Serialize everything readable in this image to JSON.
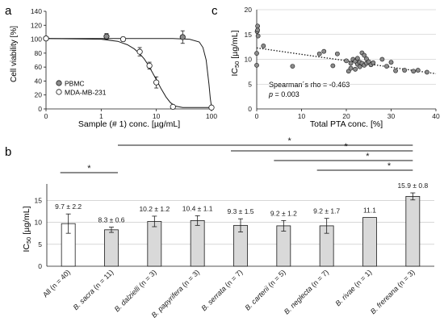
{
  "panels": {
    "a": {
      "letter": "a"
    },
    "b": {
      "letter": "b"
    },
    "c": {
      "letter": "c"
    }
  },
  "colors": {
    "ink": "#1a1a1a",
    "bar_highlight": "#ffffff",
    "bar_default": "#d9d9d9",
    "marker_grey": "#8c8c8c",
    "marker_white": "#ffffff",
    "grid": "#bfbfbf"
  },
  "chart_data": [
    {
      "panel": "a",
      "type": "line",
      "xscale": "log",
      "xlim": [
        0,
        100
      ],
      "x_ticks": [
        0,
        1,
        10,
        100
      ],
      "ylim": [
        0,
        140
      ],
      "y_ticks": [
        0,
        20,
        40,
        60,
        80,
        100,
        120,
        140
      ],
      "ylim_label_fmt": "0",
      "xlabel": "Sample (# 1) conc. [µg/mL]",
      "ylabel": "Cell viability [%]",
      "legend": {
        "placement": "bottom-left"
      },
      "series": [
        {
          "name": "PBMC",
          "marker": "filled-grey",
          "x": [
            0,
            1.25,
            30
          ],
          "y": [
            101,
            104,
            103
          ],
          "err": [
            2,
            4,
            9
          ],
          "curve_x": [
            0,
            1,
            5,
            20,
            40,
            60,
            70,
            80,
            90,
            95,
            100
          ],
          "curve_y": [
            101,
            101,
            101,
            101,
            100,
            96,
            88,
            70,
            35,
            15,
            3
          ]
        },
        {
          "name": "MDA-MB-231",
          "marker": "open",
          "x": [
            0,
            2.5,
            5,
            7.5,
            10,
            20,
            100
          ],
          "y": [
            101,
            100,
            82,
            62,
            38,
            3,
            2
          ],
          "err": [
            2,
            3,
            6,
            5,
            8,
            1,
            1
          ],
          "curve_x": [
            0,
            1,
            2,
            3,
            4,
            5,
            6,
            7,
            8,
            10,
            12,
            15,
            18,
            22,
            30,
            50,
            100
          ],
          "curve_y": [
            101,
            100,
            97,
            92,
            86,
            79,
            72,
            64,
            56,
            42,
            30,
            17,
            9,
            4,
            2,
            2,
            2
          ]
        }
      ]
    },
    {
      "panel": "b",
      "type": "bar",
      "ylabel": "IC50 [µg/mL]",
      "ylim": [
        0,
        18
      ],
      "y_ticks": [
        0,
        5,
        10,
        15
      ],
      "categories": [
        {
          "label": "All (n = 40)",
          "italic_part": ""
        },
        {
          "label": "B. sacra (n = 11)",
          "italic_part": "B. sacra"
        },
        {
          "label": "B. dalzielli (n = 3)",
          "italic_part": "B. dalzielli"
        },
        {
          "label": "B. papyrifera (n = 3)",
          "italic_part": "B. papyrifera"
        },
        {
          "label": "B. serrata (n = 7)",
          "italic_part": "B. serrata"
        },
        {
          "label": "B. carterii (n = 5)",
          "italic_part": "B. carterii"
        },
        {
          "label": "B. neglecta (n = 7)",
          "italic_part": "B. neglecta"
        },
        {
          "label": "B. rivae (n = 1)",
          "italic_part": "B. rivae"
        },
        {
          "label": "B. frereana (n = 3)",
          "italic_part": "B. frereana"
        }
      ],
      "values": [
        9.7,
        8.3,
        10.2,
        10.4,
        9.3,
        9.2,
        9.2,
        11.1,
        15.9
      ],
      "errors": [
        2.2,
        0.6,
        1.2,
        1.1,
        1.5,
        1.2,
        1.7,
        0,
        0.8
      ],
      "value_labels": [
        "9.7 ± 2.2",
        "8.3 ± 0.6",
        "10.2 ± 1.2",
        "10.4 ± 1.1",
        "9.3 ± 1.5",
        "9.2 ± 1.2",
        "9.2 ± 1.7",
        "11.1",
        "15.9 ± 0.8"
      ],
      "significance": [
        {
          "from": 0,
          "to": 1,
          "label": "*"
        },
        {
          "from": 1,
          "to": 8,
          "label": "*"
        },
        {
          "from": 4,
          "to": 8,
          "label": "*"
        },
        {
          "from": 5,
          "to": 8,
          "label": "*"
        },
        {
          "from": 6,
          "to": 8,
          "label": "*"
        }
      ]
    },
    {
      "panel": "c",
      "type": "scatter",
      "xlabel": "Total PTA conc. [%]",
      "ylabel": "IC50 [µg/mL]",
      "xlim": [
        0,
        40
      ],
      "x_ticks": [
        0,
        10,
        20,
        30,
        40
      ],
      "ylim": [
        0,
        20
      ],
      "y_ticks": [
        0,
        5,
        10,
        15,
        20
      ],
      "grid": "horizontal",
      "trendline": {
        "style": "dotted",
        "x": [
          0,
          40
        ],
        "y": [
          12.3,
          7.1
        ]
      },
      "annotation": {
        "line1": "Spearman´s rho = -0.463",
        "line2_prefix": "p",
        "line2_rest": " =  0.003"
      },
      "points": [
        [
          0,
          8.8
        ],
        [
          0,
          11.2
        ],
        [
          0.1,
          15.6
        ],
        [
          0.2,
          15.9
        ],
        [
          0.2,
          16.7
        ],
        [
          0.3,
          14.7
        ],
        [
          1.5,
          12.7
        ],
        [
          8,
          8.6
        ],
        [
          14,
          11.1
        ],
        [
          15,
          11.6
        ],
        [
          17,
          8.7
        ],
        [
          18,
          11.1
        ],
        [
          20,
          9.7
        ],
        [
          20.5,
          7.6
        ],
        [
          21,
          8.2
        ],
        [
          21,
          9.2
        ],
        [
          21.5,
          10.0
        ],
        [
          22,
          8.0
        ],
        [
          22,
          9.6
        ],
        [
          22.5,
          9.0
        ],
        [
          22.5,
          10.2
        ],
        [
          23,
          8.5
        ],
        [
          23,
          9.4
        ],
        [
          23.5,
          11.3
        ],
        [
          23.5,
          9.2
        ],
        [
          24,
          10.8
        ],
        [
          24,
          8.8
        ],
        [
          24.5,
          10.1
        ],
        [
          24.5,
          9.2
        ],
        [
          25,
          9.5
        ],
        [
          25.5,
          8.9
        ],
        [
          26,
          9.3
        ],
        [
          28,
          10.0
        ],
        [
          29,
          8.6
        ],
        [
          30,
          9.4
        ],
        [
          31,
          7.7
        ],
        [
          33,
          7.8
        ],
        [
          35,
          7.6
        ],
        [
          36,
          7.8
        ],
        [
          38,
          7.4
        ]
      ]
    }
  ]
}
